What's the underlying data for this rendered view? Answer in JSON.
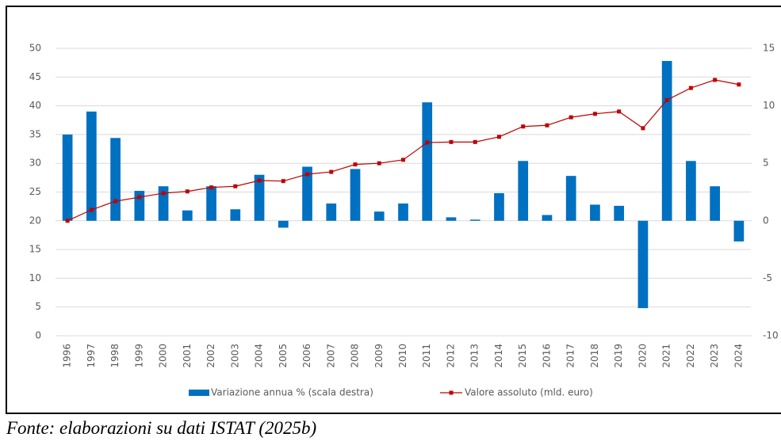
{
  "chart_data": {
    "type": "bar_line",
    "categories": [
      "1996",
      "1997",
      "1998",
      "1999",
      "2000",
      "2001",
      "2002",
      "2003",
      "2004",
      "2005",
      "2006",
      "2007",
      "2008",
      "2009",
      "2010",
      "2011",
      "2012",
      "2013",
      "2014",
      "2015",
      "2016",
      "2017",
      "2018",
      "2019",
      "2020",
      "2021",
      "2022",
      "2023",
      "2024"
    ],
    "series": [
      {
        "name": "Variazione annua % (scala destra)",
        "type": "bar",
        "axis": "y2",
        "color": "#0070c0",
        "values": [
          7.5,
          9.5,
          7.2,
          2.6,
          3.0,
          0.9,
          3.0,
          1.0,
          4.0,
          -0.6,
          4.7,
          1.5,
          4.5,
          0.8,
          1.5,
          10.3,
          0.3,
          0.1,
          2.4,
          5.2,
          0.5,
          3.9,
          1.4,
          1.3,
          -7.6,
          13.9,
          5.2,
          3.0,
          -1.8
        ]
      },
      {
        "name": "Valore assoluto (mld. euro)",
        "type": "line",
        "axis": "y",
        "color": "#c00000",
        "values": [
          20.0,
          21.9,
          23.4,
          24.1,
          24.8,
          25.1,
          25.8,
          26.0,
          27.0,
          26.9,
          28.1,
          28.5,
          29.8,
          30.0,
          30.6,
          33.6,
          33.7,
          33.7,
          34.6,
          36.4,
          36.6,
          38.0,
          38.6,
          39.0,
          36.1,
          41.0,
          43.1,
          44.5,
          43.7
        ]
      }
    ],
    "ylim": [
      0,
      50
    ],
    "yticks": [
      0,
      5,
      10,
      15,
      20,
      25,
      30,
      35,
      40,
      45,
      50
    ],
    "y2lim": [
      -10,
      15
    ],
    "y2ticks": [
      -10,
      -5,
      0,
      5,
      10,
      15
    ],
    "grid": true,
    "legend": "bottom",
    "caption": "Fonte: elaborazioni su dati ISTAT (2025b)"
  }
}
